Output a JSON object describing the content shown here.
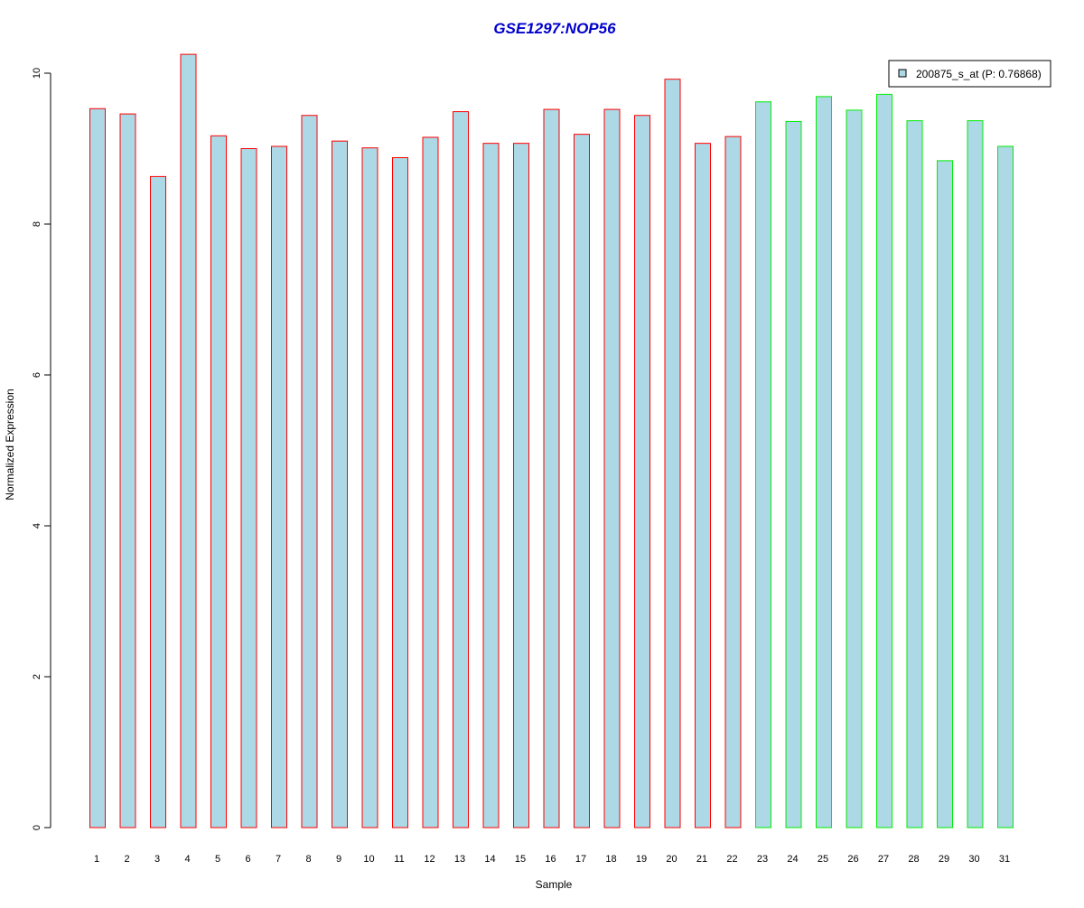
{
  "chart_data": {
    "type": "bar",
    "title": "GSE1297:NOP56",
    "xlabel": "Sample",
    "ylabel": "Normalized Expression",
    "ylim": [
      0,
      10.4
    ],
    "yticks": [
      0,
      2,
      4,
      6,
      8,
      10
    ],
    "grid": false,
    "legend_position": "top-right",
    "categories": [
      "1",
      "2",
      "3",
      "4",
      "5",
      "6",
      "7",
      "8",
      "9",
      "10",
      "11",
      "12",
      "13",
      "14",
      "15",
      "16",
      "17",
      "18",
      "19",
      "20",
      "21",
      "22",
      "23",
      "24",
      "25",
      "26",
      "27",
      "28",
      "29",
      "30",
      "31"
    ],
    "series": [
      {
        "name": "200875_s_at (P: 0.76868)",
        "values": [
          9.53,
          9.46,
          8.63,
          10.25,
          9.17,
          9.0,
          9.03,
          9.44,
          9.1,
          9.01,
          8.88,
          9.15,
          9.49,
          9.07,
          9.07,
          9.52,
          9.19,
          9.52,
          9.44,
          9.92,
          9.07,
          9.16,
          9.62,
          9.36,
          9.69,
          9.51,
          9.72,
          9.37,
          8.84,
          9.37,
          9.03
        ],
        "groups": [
          "A",
          "A",
          "A",
          "A",
          "A",
          "A",
          "A",
          "A",
          "A",
          "A",
          "A",
          "A",
          "A",
          "A",
          "A",
          "A",
          "A",
          "A",
          "A",
          "A",
          "A",
          "A",
          "B",
          "B",
          "B",
          "B",
          "B",
          "B",
          "B",
          "B",
          "B"
        ]
      }
    ],
    "colors": {
      "bar_fill": "#add8e6",
      "group_A_border": "#ff0000",
      "group_B_border": "#00ee00",
      "title": "#0000cc",
      "axis": "#000000"
    }
  }
}
